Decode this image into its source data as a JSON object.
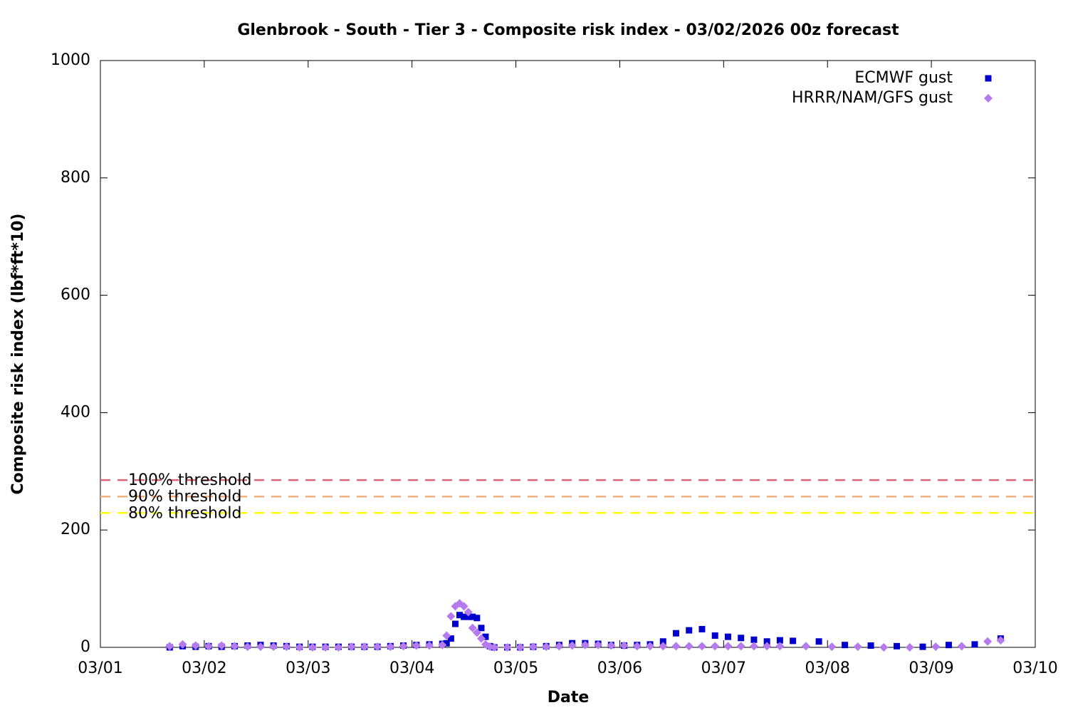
{
  "chart_data": {
    "type": "scatter",
    "title": "Glenbrook - South - Tier 3 - Composite risk index - 03/02/2026 00z forecast",
    "xlabel": "Date",
    "ylabel": "Composite risk index (lbf*ft*10)",
    "xlim": [
      0,
      9
    ],
    "xticks": [
      {
        "value": 0,
        "label": "03/01"
      },
      {
        "value": 1,
        "label": "03/02"
      },
      {
        "value": 2,
        "label": "03/03"
      },
      {
        "value": 3,
        "label": "03/04"
      },
      {
        "value": 4,
        "label": "03/05"
      },
      {
        "value": 5,
        "label": "03/06"
      },
      {
        "value": 6,
        "label": "03/07"
      },
      {
        "value": 7,
        "label": "03/08"
      },
      {
        "value": 8,
        "label": "03/09"
      },
      {
        "value": 9,
        "label": "03/10"
      }
    ],
    "ylim": [
      0,
      1000
    ],
    "yticks": [
      0,
      200,
      400,
      600,
      800,
      1000
    ],
    "legend": "top-right",
    "thresholds": [
      {
        "label": "100% threshold",
        "value": 285,
        "color": "#dc6474"
      },
      {
        "label": "90% threshold",
        "value": 257,
        "color": "#f2b07e"
      },
      {
        "label": "80% threshold",
        "value": 229,
        "color": "#ffff00"
      }
    ],
    "series": [
      {
        "name": "ECMWF gust",
        "color": "#0000cc",
        "marker": "square",
        "x": [
          0.667,
          0.792,
          0.917,
          1.042,
          1.167,
          1.292,
          1.417,
          1.542,
          1.667,
          1.792,
          1.917,
          2.042,
          2.167,
          2.292,
          2.417,
          2.542,
          2.667,
          2.792,
          2.917,
          3.042,
          3.167,
          3.292,
          3.333,
          3.375,
          3.417,
          3.458,
          3.5,
          3.542,
          3.583,
          3.625,
          3.667,
          3.708,
          3.75,
          3.792,
          3.917,
          4.042,
          4.167,
          4.292,
          4.417,
          4.542,
          4.667,
          4.792,
          4.917,
          5.042,
          5.167,
          5.292,
          5.417,
          5.542,
          5.667,
          5.792,
          5.917,
          6.042,
          6.167,
          6.292,
          6.417,
          6.542,
          6.667,
          6.917,
          7.167,
          7.417,
          7.667,
          7.917,
          8.167,
          8.417,
          8.667
        ],
        "values": [
          0,
          2,
          1,
          2,
          1,
          2,
          3,
          4,
          3,
          2,
          1,
          1,
          1,
          1,
          1,
          1,
          1,
          2,
          3,
          4,
          5,
          6,
          7,
          15,
          40,
          55,
          52,
          52,
          52,
          50,
          33,
          18,
          2,
          0,
          0,
          0,
          1,
          2,
          4,
          7,
          7,
          6,
          4,
          3,
          4,
          5,
          10,
          24,
          29,
          31,
          20,
          18,
          16,
          13,
          10,
          12,
          11,
          10,
          4,
          3,
          2,
          1,
          4,
          5,
          15
        ]
      },
      {
        "name": "HRRR/NAM/GFS gust",
        "color": "#b57bee",
        "marker": "diamond",
        "x": [
          0.667,
          0.792,
          0.917,
          1.042,
          1.167,
          1.292,
          1.417,
          1.542,
          1.667,
          1.792,
          1.917,
          2.042,
          2.167,
          2.292,
          2.417,
          2.542,
          2.667,
          2.792,
          2.917,
          3.042,
          3.167,
          3.292,
          3.333,
          3.375,
          3.417,
          3.458,
          3.5,
          3.542,
          3.583,
          3.625,
          3.667,
          3.708,
          3.75,
          3.792,
          3.917,
          4.042,
          4.167,
          4.292,
          4.417,
          4.542,
          4.667,
          4.792,
          4.917,
          5.042,
          5.167,
          5.292,
          5.417,
          5.542,
          5.667,
          5.792,
          5.917,
          6.042,
          6.167,
          6.292,
          6.417,
          6.542,
          6.792,
          7.042,
          7.292,
          7.542,
          7.792,
          8.042,
          8.292,
          8.542,
          8.667
        ],
        "values": [
          2,
          5,
          3,
          2,
          3,
          2,
          1,
          1,
          1,
          1,
          0,
          0,
          0,
          0,
          1,
          1,
          1,
          1,
          2,
          3,
          3,
          4,
          20,
          53,
          70,
          75,
          70,
          60,
          33,
          25,
          15,
          5,
          1,
          0,
          0,
          0,
          1,
          1,
          2,
          3,
          4,
          4,
          3,
          3,
          2,
          2,
          2,
          2,
          2,
          2,
          2,
          2,
          2,
          2,
          2,
          2,
          2,
          1,
          1,
          0,
          0,
          1,
          2,
          10,
          12
        ]
      }
    ]
  }
}
